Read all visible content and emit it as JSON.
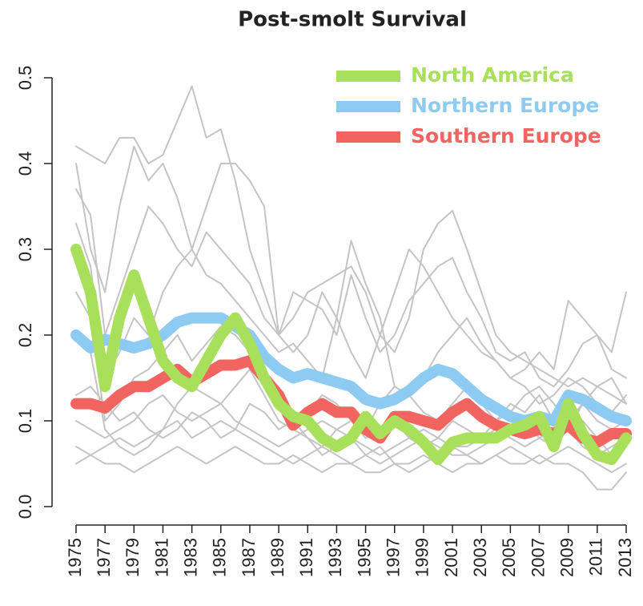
{
  "chart_data": {
    "type": "line",
    "title": "Post-smolt Survival",
    "x": [
      1975,
      1976,
      1977,
      1978,
      1979,
      1980,
      1981,
      1982,
      1983,
      1984,
      1985,
      1986,
      1987,
      1988,
      1989,
      1990,
      1991,
      1992,
      1993,
      1994,
      1995,
      1996,
      1997,
      1998,
      1999,
      2000,
      2001,
      2002,
      2003,
      2004,
      2005,
      2006,
      2007,
      2008,
      2009,
      2010,
      2011,
      2012,
      2013
    ],
    "xlim": [
      1975,
      2013
    ],
    "xticks": [
      1975,
      1977,
      1979,
      1981,
      1983,
      1985,
      1987,
      1989,
      1991,
      1993,
      1995,
      1997,
      1999,
      2001,
      2003,
      2005,
      2007,
      2009,
      2011,
      2013
    ],
    "ylim": [
      0,
      0.5
    ],
    "yticks": [
      {
        "value": 0,
        "label": "0.0"
      },
      0.1,
      0.2,
      0.3,
      0.4,
      0.5
    ],
    "legend": "topright",
    "series": [
      {
        "color": "#c4c4c4",
        "values": [
          0.42,
          0.41,
          0.4,
          0.43,
          0.43,
          0.4,
          0.41,
          0.45,
          0.49,
          0.43,
          0.44,
          0.38,
          0.3,
          0.25,
          0.2,
          0.22,
          0.25,
          0.26,
          0.27,
          0.28,
          0.25,
          0.2,
          0.18,
          0.22,
          0.3,
          0.33,
          0.345,
          0.3,
          0.25,
          0.2,
          0.18,
          0.17,
          0.16,
          0.15,
          0.14,
          0.15,
          0.14,
          0.13,
          0.12
        ]
      },
      {
        "color": "#c4c4c4",
        "values": [
          0.4,
          0.3,
          0.25,
          0.35,
          0.42,
          0.38,
          0.4,
          0.36,
          0.3,
          0.35,
          0.4,
          0.4,
          0.38,
          0.35,
          0.2,
          0.18,
          0.2,
          0.25,
          0.22,
          0.18,
          0.15,
          0.2,
          0.25,
          0.3,
          0.28,
          0.25,
          0.22,
          0.2,
          0.18,
          0.17,
          0.15,
          0.16,
          0.18,
          0.16,
          0.24,
          0.22,
          0.2,
          0.18,
          0.25
        ]
      },
      {
        "color": "#c4c4c4",
        "values": [
          0.37,
          0.34,
          0.2,
          0.25,
          0.3,
          0.35,
          0.33,
          0.3,
          0.28,
          0.32,
          0.3,
          0.28,
          0.26,
          0.22,
          0.2,
          0.25,
          0.24,
          0.23,
          0.2,
          0.27,
          0.22,
          0.18,
          0.2,
          0.24,
          0.26,
          0.28,
          0.29,
          0.25,
          0.22,
          0.18,
          0.17,
          0.18,
          0.15,
          0.14,
          0.16,
          0.19,
          0.2,
          0.16,
          0.15
        ]
      },
      {
        "color": "#c4c4c4",
        "values": [
          0.33,
          0.28,
          0.15,
          0.18,
          0.22,
          0.2,
          0.25,
          0.28,
          0.3,
          0.27,
          0.26,
          0.24,
          0.22,
          0.2,
          0.18,
          0.19,
          0.17,
          0.15,
          0.22,
          0.31,
          0.26,
          0.22,
          0.14,
          0.13,
          0.15,
          0.18,
          0.2,
          0.22,
          0.19,
          0.17,
          0.15,
          0.14,
          0.12,
          0.13,
          0.15,
          0.14,
          0.12,
          0.11,
          0.13
        ]
      },
      {
        "color": "#c4c4c4",
        "values": [
          0.1,
          0.09,
          0.08,
          0.09,
          0.1,
          0.12,
          0.13,
          0.11,
          0.1,
          0.11,
          0.12,
          0.1,
          0.09,
          0.08,
          0.07,
          0.08,
          0.09,
          0.1,
          0.09,
          0.08,
          0.07,
          0.06,
          0.07,
          0.08,
          0.09,
          0.08,
          0.07,
          0.07,
          0.08,
          0.09,
          0.08,
          0.07,
          0.08,
          0.07,
          0.09,
          0.07,
          0.06,
          0.07,
          0.08
        ]
      },
      {
        "color": "#c4c4c4",
        "values": [
          0.07,
          0.06,
          0.05,
          0.05,
          0.04,
          0.05,
          0.06,
          0.07,
          0.06,
          0.05,
          0.06,
          0.07,
          0.06,
          0.05,
          0.05,
          0.06,
          0.05,
          0.04,
          0.05,
          0.05,
          0.04,
          0.04,
          0.05,
          0.05,
          0.06,
          0.05,
          0.04,
          0.05,
          0.05,
          0.06,
          0.05,
          0.05,
          0.06,
          0.05,
          0.05,
          0.04,
          0.02,
          0.02,
          0.04
        ]
      },
      {
        "color": "#c4c4c4",
        "values": [
          0.05,
          0.06,
          0.07,
          0.08,
          0.07,
          0.08,
          0.09,
          0.1,
          0.08,
          0.09,
          0.1,
          0.09,
          0.08,
          0.07,
          0.06,
          0.05,
          0.06,
          0.07,
          0.06,
          0.05,
          0.06,
          0.07,
          0.05,
          0.04,
          0.05,
          0.06,
          0.07,
          0.06,
          0.05,
          0.06,
          0.07,
          0.06,
          0.05,
          0.06,
          0.07,
          0.06,
          0.05,
          0.04,
          0.05
        ]
      },
      {
        "color": "#c4c4c4",
        "values": [
          0.25,
          0.22,
          0.1,
          0.12,
          0.15,
          0.16,
          0.18,
          0.2,
          0.17,
          0.19,
          0.21,
          0.2,
          0.18,
          0.14,
          0.12,
          0.1,
          0.11,
          0.13,
          0.12,
          0.1,
          0.09,
          0.12,
          0.14,
          0.13,
          0.11,
          0.1,
          0.12,
          0.14,
          0.12,
          0.1,
          0.11,
          0.13,
          0.14,
          0.12,
          0.1,
          0.12,
          0.1,
          0.09,
          0.1
        ]
      },
      {
        "color": "#c4c4c4",
        "values": [
          0.13,
          0.14,
          0.12,
          0.1,
          0.11,
          0.09,
          0.08,
          0.09,
          0.11,
          0.1,
          0.08,
          0.09,
          0.12,
          0.11,
          0.09,
          0.1,
          0.08,
          0.07,
          0.09,
          0.1,
          0.08,
          0.09,
          0.1,
          0.08,
          0.07,
          0.08,
          0.1,
          0.09,
          0.08,
          0.1,
          0.12,
          0.11,
          0.13,
          0.1,
          0.09,
          0.12,
          0.14,
          0.15,
          0.12
        ]
      },
      {
        "color": "#c4c4c4",
        "values": [
          0.2,
          0.18,
          0.09,
          0.07,
          0.06,
          0.07,
          0.09,
          0.12,
          0.14,
          0.13,
          0.12,
          0.14,
          0.16,
          0.13,
          0.1,
          0.09,
          0.08,
          0.06,
          0.07,
          0.08,
          0.06,
          0.05,
          0.06,
          0.07,
          0.08,
          0.07,
          0.06,
          0.06,
          0.07,
          0.08,
          0.09,
          0.1,
          0.08,
          0.09,
          0.11,
          0.1,
          0.08,
          0.06,
          0.07
        ]
      },
      {
        "name": "Southern Europe",
        "color": "#f2645f",
        "values": [
          0.12,
          0.12,
          0.115,
          0.13,
          0.14,
          0.14,
          0.15,
          0.16,
          0.145,
          0.155,
          0.165,
          0.165,
          0.17,
          0.15,
          0.13,
          0.095,
          0.11,
          0.12,
          0.11,
          0.11,
          0.09,
          0.08,
          0.105,
          0.105,
          0.1,
          0.095,
          0.11,
          0.12,
          0.105,
          0.095,
          0.09,
          0.085,
          0.09,
          0.085,
          0.095,
          0.08,
          0.075,
          0.085,
          0.085
        ]
      },
      {
        "name": "Northern Europe",
        "color": "#8ecbf2",
        "values": [
          0.2,
          0.185,
          0.195,
          0.19,
          0.185,
          0.19,
          0.2,
          0.215,
          0.22,
          0.22,
          0.22,
          0.21,
          0.2,
          0.175,
          0.16,
          0.15,
          0.155,
          0.15,
          0.145,
          0.14,
          0.125,
          0.12,
          0.125,
          0.135,
          0.15,
          0.16,
          0.155,
          0.14,
          0.125,
          0.115,
          0.105,
          0.1,
          0.105,
          0.1,
          0.13,
          0.125,
          0.115,
          0.105,
          0.1
        ]
      },
      {
        "name": "North America",
        "color": "#a8e05c",
        "values": [
          0.3,
          0.25,
          0.14,
          0.22,
          0.27,
          0.22,
          0.17,
          0.15,
          0.14,
          0.17,
          0.2,
          0.22,
          0.19,
          0.15,
          0.12,
          0.105,
          0.1,
          0.08,
          0.07,
          0.08,
          0.105,
          0.085,
          0.1,
          0.09,
          0.075,
          0.055,
          0.075,
          0.08,
          0.08,
          0.08,
          0.09,
          0.095,
          0.105,
          0.07,
          0.12,
          0.085,
          0.06,
          0.055,
          0.08
        ]
      }
    ]
  }
}
